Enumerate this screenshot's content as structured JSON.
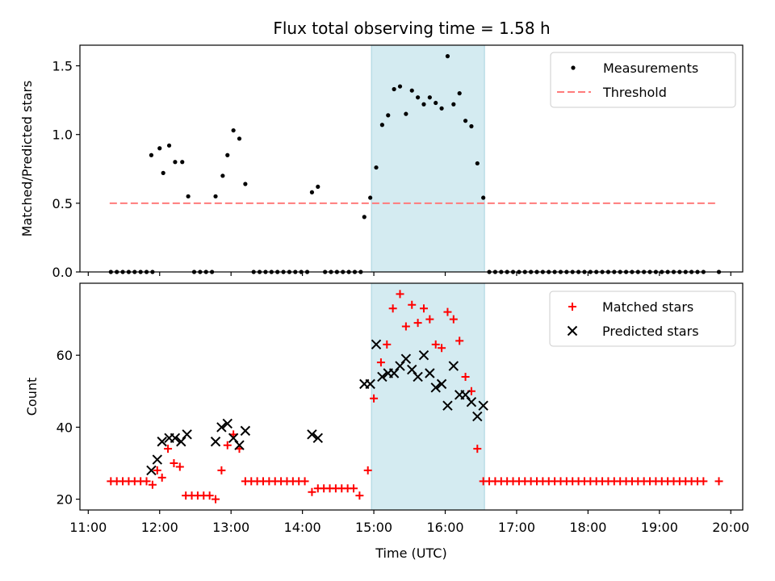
{
  "title": "Flux total observing time = 1.58 h",
  "chart_data": [
    {
      "type": "scatter",
      "ylabel": "Matched/Predicted stars",
      "xlim": [
        "10:53",
        "20:10"
      ],
      "ylim": [
        0,
        1.65
      ],
      "yticks": [
        "0.0",
        "0.5",
        "1.0",
        "1.5"
      ],
      "highlight_span": [
        "14:58",
        "16:33"
      ],
      "legend_position": "upper right",
      "series": [
        {
          "name": "Measurements",
          "marker": "dot",
          "color": "#000000",
          "points": [
            [
              "11:19",
              0
            ],
            [
              "11:24",
              0
            ],
            [
              "11:29",
              0
            ],
            [
              "11:34",
              0
            ],
            [
              "11:39",
              0
            ],
            [
              "11:44",
              0
            ],
            [
              "11:49",
              0
            ],
            [
              "11:54",
              0
            ],
            [
              "11:53",
              0.85
            ],
            [
              "12:00",
              0.9
            ],
            [
              "12:03",
              0.72
            ],
            [
              "12:08",
              0.92
            ],
            [
              "12:13",
              0.8
            ],
            [
              "12:19",
              0.8
            ],
            [
              "12:24",
              0.55
            ],
            [
              "12:29",
              0
            ],
            [
              "12:34",
              0
            ],
            [
              "12:39",
              0
            ],
            [
              "12:44",
              0
            ],
            [
              "12:47",
              0.55
            ],
            [
              "12:53",
              0.7
            ],
            [
              "12:57",
              0.85
            ],
            [
              "13:02",
              1.03
            ],
            [
              "13:07",
              0.97
            ],
            [
              "13:12",
              0.64
            ],
            [
              "13:19",
              0
            ],
            [
              "13:24",
              0
            ],
            [
              "13:29",
              0
            ],
            [
              "13:34",
              0
            ],
            [
              "13:39",
              0
            ],
            [
              "13:44",
              0
            ],
            [
              "13:49",
              0
            ],
            [
              "13:54",
              0
            ],
            [
              "13:59",
              0
            ],
            [
              "14:04",
              0
            ],
            [
              "14:08",
              0.58
            ],
            [
              "14:13",
              0.62
            ],
            [
              "14:19",
              0
            ],
            [
              "14:24",
              0
            ],
            [
              "14:29",
              0
            ],
            [
              "14:34",
              0
            ],
            [
              "14:39",
              0
            ],
            [
              "14:44",
              0
            ],
            [
              "14:49",
              0
            ],
            [
              "14:52",
              0.4
            ],
            [
              "14:57",
              0.54
            ],
            [
              "15:02",
              0.76
            ],
            [
              "15:07",
              1.07
            ],
            [
              "15:12",
              1.14
            ],
            [
              "15:17",
              1.33
            ],
            [
              "15:22",
              1.35
            ],
            [
              "15:27",
              1.15
            ],
            [
              "15:32",
              1.32
            ],
            [
              "15:37",
              1.27
            ],
            [
              "15:42",
              1.22
            ],
            [
              "15:47",
              1.27
            ],
            [
              "15:52",
              1.23
            ],
            [
              "15:57",
              1.19
            ],
            [
              "16:02",
              1.57
            ],
            [
              "16:07",
              1.22
            ],
            [
              "16:12",
              1.3
            ],
            [
              "16:17",
              1.1
            ],
            [
              "16:22",
              1.06
            ],
            [
              "16:27",
              0.79
            ],
            [
              "16:32",
              0.54
            ],
            [
              "16:37",
              0
            ],
            [
              "16:42",
              0
            ],
            [
              "16:47",
              0
            ],
            [
              "16:52",
              0
            ],
            [
              "16:57",
              0
            ],
            [
              "17:02",
              0
            ],
            [
              "17:07",
              0
            ],
            [
              "17:12",
              0
            ],
            [
              "17:17",
              0
            ],
            [
              "17:22",
              0
            ],
            [
              "17:27",
              0
            ],
            [
              "17:32",
              0
            ],
            [
              "17:37",
              0
            ],
            [
              "17:42",
              0
            ],
            [
              "17:47",
              0
            ],
            [
              "17:52",
              0
            ],
            [
              "17:57",
              0
            ],
            [
              "18:02",
              0
            ],
            [
              "18:07",
              0
            ],
            [
              "18:12",
              0
            ],
            [
              "18:17",
              0
            ],
            [
              "18:22",
              0
            ],
            [
              "18:27",
              0
            ],
            [
              "18:32",
              0
            ],
            [
              "18:37",
              0
            ],
            [
              "18:42",
              0
            ],
            [
              "18:47",
              0
            ],
            [
              "18:52",
              0
            ],
            [
              "18:57",
              0
            ],
            [
              "19:02",
              0
            ],
            [
              "19:07",
              0
            ],
            [
              "19:12",
              0
            ],
            [
              "19:17",
              0
            ],
            [
              "19:22",
              0
            ],
            [
              "19:27",
              0
            ],
            [
              "19:32",
              0
            ],
            [
              "19:37",
              0
            ],
            [
              "19:50",
              0
            ]
          ]
        },
        {
          "name": "Threshold",
          "style": "dashed-line",
          "color": "#ff7b7b",
          "x": [
            "11:18",
            "19:48"
          ],
          "y": [
            0.5,
            0.5
          ]
        }
      ]
    },
    {
      "type": "scatter",
      "ylabel": "Count",
      "xlabel": "Time (UTC)",
      "xlim": [
        "10:53",
        "20:10"
      ],
      "ylim": [
        17,
        80
      ],
      "yticks": [
        "20",
        "40",
        "60"
      ],
      "xticks": [
        "11:00",
        "12:00",
        "13:00",
        "14:00",
        "15:00",
        "16:00",
        "17:00",
        "18:00",
        "19:00",
        "20:00"
      ],
      "highlight_span": [
        "14:58",
        "16:33"
      ],
      "legend_position": "upper right",
      "series": [
        {
          "name": "Matched stars",
          "marker": "plus",
          "color": "#ff0000",
          "points": [
            [
              "11:19",
              25
            ],
            [
              "11:24",
              25
            ],
            [
              "11:29",
              25
            ],
            [
              "11:34",
              25
            ],
            [
              "11:39",
              25
            ],
            [
              "11:44",
              25
            ],
            [
              "11:49",
              25
            ],
            [
              "11:54",
              24
            ],
            [
              "11:58",
              28
            ],
            [
              "12:02",
              26
            ],
            [
              "12:07",
              34
            ],
            [
              "12:12",
              30
            ],
            [
              "12:17",
              29
            ],
            [
              "12:22",
              21
            ],
            [
              "12:27",
              21
            ],
            [
              "12:32",
              21
            ],
            [
              "12:37",
              21
            ],
            [
              "12:42",
              21
            ],
            [
              "12:47",
              20
            ],
            [
              "12:52",
              28
            ],
            [
              "12:57",
              35
            ],
            [
              "13:02",
              38
            ],
            [
              "13:07",
              34
            ],
            [
              "13:12",
              25
            ],
            [
              "13:17",
              25
            ],
            [
              "13:22",
              25
            ],
            [
              "13:27",
              25
            ],
            [
              "13:32",
              25
            ],
            [
              "13:37",
              25
            ],
            [
              "13:42",
              25
            ],
            [
              "13:47",
              25
            ],
            [
              "13:52",
              25
            ],
            [
              "13:57",
              25
            ],
            [
              "14:02",
              25
            ],
            [
              "14:08",
              22
            ],
            [
              "14:13",
              23
            ],
            [
              "14:18",
              23
            ],
            [
              "14:23",
              23
            ],
            [
              "14:28",
              23
            ],
            [
              "14:33",
              23
            ],
            [
              "14:38",
              23
            ],
            [
              "14:43",
              23
            ],
            [
              "14:48",
              21
            ],
            [
              "14:55",
              28
            ],
            [
              "15:00",
              48
            ],
            [
              "15:06",
              58
            ],
            [
              "15:11",
              63
            ],
            [
              "15:16",
              73
            ],
            [
              "15:22",
              77
            ],
            [
              "15:27",
              68
            ],
            [
              "15:32",
              74
            ],
            [
              "15:37",
              69
            ],
            [
              "15:42",
              73
            ],
            [
              "15:47",
              70
            ],
            [
              "15:52",
              63
            ],
            [
              "15:57",
              62
            ],
            [
              "16:02",
              72
            ],
            [
              "16:07",
              70
            ],
            [
              "16:12",
              64
            ],
            [
              "16:17",
              54
            ],
            [
              "16:22",
              50
            ],
            [
              "16:27",
              34
            ],
            [
              "16:32",
              25
            ],
            [
              "16:37",
              25
            ],
            [
              "16:42",
              25
            ],
            [
              "16:47",
              25
            ],
            [
              "16:52",
              25
            ],
            [
              "16:57",
              25
            ],
            [
              "17:02",
              25
            ],
            [
              "17:07",
              25
            ],
            [
              "17:12",
              25
            ],
            [
              "17:17",
              25
            ],
            [
              "17:22",
              25
            ],
            [
              "17:27",
              25
            ],
            [
              "17:32",
              25
            ],
            [
              "17:37",
              25
            ],
            [
              "17:42",
              25
            ],
            [
              "17:47",
              25
            ],
            [
              "17:52",
              25
            ],
            [
              "17:57",
              25
            ],
            [
              "18:02",
              25
            ],
            [
              "18:07",
              25
            ],
            [
              "18:12",
              25
            ],
            [
              "18:17",
              25
            ],
            [
              "18:22",
              25
            ],
            [
              "18:27",
              25
            ],
            [
              "18:32",
              25
            ],
            [
              "18:37",
              25
            ],
            [
              "18:42",
              25
            ],
            [
              "18:47",
              25
            ],
            [
              "18:52",
              25
            ],
            [
              "18:57",
              25
            ],
            [
              "19:02",
              25
            ],
            [
              "19:07",
              25
            ],
            [
              "19:12",
              25
            ],
            [
              "19:17",
              25
            ],
            [
              "19:22",
              25
            ],
            [
              "19:27",
              25
            ],
            [
              "19:32",
              25
            ],
            [
              "19:37",
              25
            ],
            [
              "19:50",
              25
            ]
          ]
        },
        {
          "name": "Predicted stars",
          "marker": "x",
          "color": "#000000",
          "points": [
            [
              "11:53",
              28
            ],
            [
              "11:58",
              31
            ],
            [
              "12:02",
              36
            ],
            [
              "12:08",
              37
            ],
            [
              "12:13",
              37
            ],
            [
              "12:18",
              36
            ],
            [
              "12:23",
              38
            ],
            [
              "12:47",
              36
            ],
            [
              "12:52",
              40
            ],
            [
              "12:57",
              41
            ],
            [
              "13:02",
              37
            ],
            [
              "13:07",
              35
            ],
            [
              "13:12",
              39
            ],
            [
              "14:08",
              38
            ],
            [
              "14:13",
              37
            ],
            [
              "14:52",
              52
            ],
            [
              "14:57",
              52
            ],
            [
              "15:02",
              63
            ],
            [
              "15:07",
              54
            ],
            [
              "15:12",
              55
            ],
            [
              "15:17",
              55
            ],
            [
              "15:22",
              57
            ],
            [
              "15:27",
              59
            ],
            [
              "15:32",
              56
            ],
            [
              "15:37",
              54
            ],
            [
              "15:42",
              60
            ],
            [
              "15:47",
              55
            ],
            [
              "15:52",
              51
            ],
            [
              "15:57",
              52
            ],
            [
              "16:02",
              46
            ],
            [
              "16:07",
              57
            ],
            [
              "16:12",
              49
            ],
            [
              "16:17",
              49
            ],
            [
              "16:22",
              47
            ],
            [
              "16:27",
              43
            ],
            [
              "16:32",
              46
            ]
          ]
        }
      ]
    }
  ]
}
